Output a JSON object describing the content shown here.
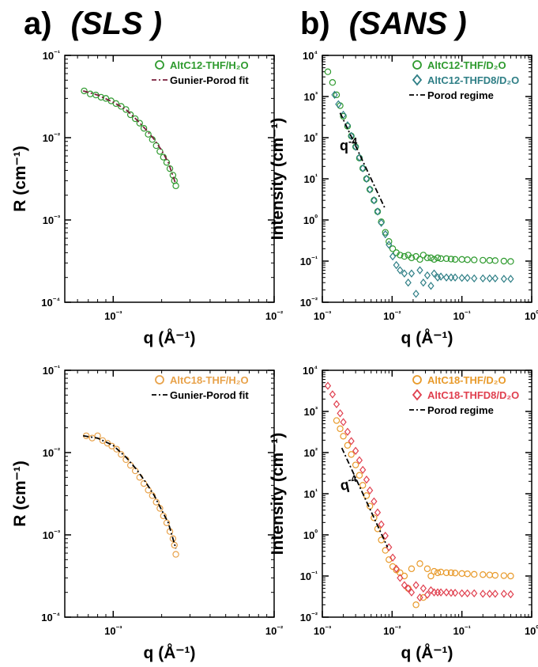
{
  "headers": [
    {
      "letter": "a)",
      "technique": "(SLS )"
    },
    {
      "letter": "b)",
      "technique": "(SANS )"
    }
  ],
  "chart_data": [
    {
      "type": "scatter",
      "panel": "a-top",
      "xlabel": "q (Å⁻¹)",
      "ylabel": "R  (cm⁻¹)",
      "xscale": "log",
      "yscale": "log",
      "xlim": [
        0.0005,
        0.01
      ],
      "ylim": [
        0.0001,
        0.1
      ],
      "xticks": [
        {
          "v": 0.001,
          "label": "10⁻³"
        },
        {
          "v": 0.01,
          "label": "10⁻²"
        }
      ],
      "yticks": [
        {
          "v": 0.0001,
          "label": "10⁻⁴"
        },
        {
          "v": 0.001,
          "label": "10⁻³"
        },
        {
          "v": 0.01,
          "label": "10⁻²"
        },
        {
          "v": 0.1,
          "label": "10⁻¹"
        }
      ],
      "legend_position": "top-right",
      "series": [
        {
          "name": "AltC12-THF/H₂O",
          "marker": "circle",
          "color": "#2e9a2e",
          "x": [
            0.00066,
            0.00072,
            0.00078,
            0.00084,
            0.0009,
            0.00097,
            0.00104,
            0.00112,
            0.0012,
            0.00128,
            0.00137,
            0.00146,
            0.00155,
            0.00165,
            0.00175,
            0.00185,
            0.00195,
            0.00205,
            0.00215,
            0.00225,
            0.00235,
            0.0024,
            0.00245
          ],
          "y": [
            0.037,
            0.034,
            0.033,
            0.031,
            0.03,
            0.028,
            0.026,
            0.024,
            0.022,
            0.019,
            0.017,
            0.015,
            0.013,
            0.011,
            0.0095,
            0.008,
            0.0068,
            0.0058,
            0.005,
            0.0042,
            0.0035,
            0.003,
            0.0026
          ]
        },
        {
          "name": "Gunier-Porod fit",
          "style": "dash-dot",
          "color": "#7a1f3d",
          "x": [
            0.00065,
            0.0008,
            0.001,
            0.0012,
            0.0014,
            0.0016,
            0.0018,
            0.002,
            0.0022,
            0.00245
          ],
          "y": [
            0.037,
            0.033,
            0.027,
            0.022,
            0.0165,
            0.0125,
            0.0095,
            0.007,
            0.005,
            0.0027
          ]
        }
      ]
    },
    {
      "type": "scatter",
      "panel": "b-top",
      "xlabel": "q (Å⁻¹)",
      "ylabel": "Intensity  (cm⁻¹)",
      "xscale": "log",
      "yscale": "log",
      "xlim": [
        0.001,
        1
      ],
      "ylim": [
        0.01,
        10000
      ],
      "xticks": [
        {
          "v": 0.001,
          "label": "10⁻³"
        },
        {
          "v": 0.01,
          "label": "10⁻²"
        },
        {
          "v": 0.1,
          "label": "10⁻¹"
        },
        {
          "v": 1,
          "label": "10⁰"
        }
      ],
      "yticks": [
        {
          "v": 0.01,
          "label": "10⁻²"
        },
        {
          "v": 0.1,
          "label": "10⁻¹"
        },
        {
          "v": 1,
          "label": "10⁰"
        },
        {
          "v": 10,
          "label": "10¹"
        },
        {
          "v": 100,
          "label": "10²"
        },
        {
          "v": 1000,
          "label": "10³"
        },
        {
          "v": 10000,
          "label": "10⁴"
        }
      ],
      "legend_position": "top-right",
      "annotation": {
        "text": "q",
        "exponent": "-4"
      },
      "series": [
        {
          "name": "AltC12-THF/D₂O",
          "marker": "circle",
          "color": "#2e9a2e",
          "x": [
            0.0012,
            0.0014,
            0.0016,
            0.0018,
            0.002,
            0.0023,
            0.0026,
            0.003,
            0.0034,
            0.0038,
            0.0043,
            0.0048,
            0.0055,
            0.0062,
            0.007,
            0.008,
            0.009,
            0.0102,
            0.0115,
            0.013,
            0.015,
            0.017,
            0.019,
            0.022,
            0.025,
            0.028,
            0.032,
            0.036,
            0.04,
            0.045,
            0.05,
            0.06,
            0.07,
            0.08,
            0.1,
            0.12,
            0.15,
            0.2,
            0.25,
            0.3,
            0.4,
            0.5
          ],
          "y": [
            4000,
            2200,
            1100,
            600,
            330,
            190,
            110,
            60,
            32,
            18,
            10,
            5.5,
            3,
            1.6,
            0.9,
            0.5,
            0.3,
            0.2,
            0.16,
            0.14,
            0.13,
            0.14,
            0.12,
            0.13,
            0.11,
            0.14,
            0.12,
            0.12,
            0.11,
            0.12,
            0.115,
            0.115,
            0.112,
            0.11,
            0.11,
            0.108,
            0.107,
            0.105,
            0.104,
            0.103,
            0.1,
            0.098
          ]
        },
        {
          "name": "AltC12-THFD8/D₂O",
          "marker": "diamond",
          "color": "#2f7f86",
          "x": [
            0.0015,
            0.0017,
            0.002,
            0.0023,
            0.0026,
            0.003,
            0.0034,
            0.0038,
            0.0043,
            0.0048,
            0.0055,
            0.0062,
            0.007,
            0.008,
            0.009,
            0.0102,
            0.0115,
            0.013,
            0.015,
            0.017,
            0.019,
            0.022,
            0.025,
            0.028,
            0.032,
            0.036,
            0.04,
            0.045,
            0.05,
            0.06,
            0.07,
            0.08,
            0.1,
            0.12,
            0.15,
            0.2,
            0.25,
            0.3,
            0.4,
            0.5
          ],
          "y": [
            1100,
            650,
            360,
            200,
            110,
            60,
            33,
            18,
            10,
            5.5,
            3,
            1.6,
            0.85,
            0.45,
            0.25,
            0.13,
            0.08,
            0.06,
            0.05,
            0.03,
            0.05,
            0.016,
            0.06,
            0.03,
            0.045,
            0.025,
            0.05,
            0.04,
            0.042,
            0.04,
            0.04,
            0.04,
            0.039,
            0.039,
            0.038,
            0.038,
            0.038,
            0.038,
            0.037,
            0.037
          ]
        },
        {
          "name": "Porod regime",
          "style": "dash-dot",
          "color": "#000000",
          "x": [
            0.0018,
            0.0078
          ],
          "y": [
            400,
            2
          ]
        }
      ]
    },
    {
      "type": "scatter",
      "panel": "a-bottom",
      "xlabel": "q (Å⁻¹)",
      "ylabel": "R  (cm⁻¹)",
      "xscale": "log",
      "yscale": "log",
      "xlim": [
        0.0005,
        0.01
      ],
      "ylim": [
        0.0001,
        0.1
      ],
      "xticks": [
        {
          "v": 0.001,
          "label": "10⁻³"
        },
        {
          "v": 0.01,
          "label": "10⁻²"
        }
      ],
      "yticks": [
        {
          "v": 0.0001,
          "label": "10⁻⁴"
        },
        {
          "v": 0.001,
          "label": "10⁻³"
        },
        {
          "v": 0.01,
          "label": "10⁻²"
        },
        {
          "v": 0.1,
          "label": "10⁻¹"
        }
      ],
      "legend_position": "top-right",
      "series": [
        {
          "name": "AltC18-THF/H₂O",
          "marker": "circle",
          "color": "#e8a24a",
          "x": [
            0.00068,
            0.00074,
            0.0008,
            0.00086,
            0.00092,
            0.00098,
            0.00105,
            0.00112,
            0.0012,
            0.00128,
            0.00137,
            0.00146,
            0.00155,
            0.00165,
            0.00175,
            0.00185,
            0.00195,
            0.00205,
            0.00215,
            0.00225,
            0.00235,
            0.0024,
            0.00245
          ],
          "y": [
            0.016,
            0.015,
            0.016,
            0.014,
            0.013,
            0.012,
            0.011,
            0.0095,
            0.0082,
            0.007,
            0.006,
            0.005,
            0.0042,
            0.0035,
            0.003,
            0.0025,
            0.0021,
            0.0017,
            0.0014,
            0.0011,
            0.0009,
            0.00075,
            0.00058
          ]
        },
        {
          "name": "Gunier-Porod fit",
          "style": "dash-dot",
          "color": "#000000",
          "x": [
            0.00065,
            0.0008,
            0.001,
            0.0012,
            0.0014,
            0.0016,
            0.0018,
            0.002,
            0.0022,
            0.00245
          ],
          "y": [
            0.016,
            0.015,
            0.0122,
            0.0088,
            0.0062,
            0.0043,
            0.003,
            0.002,
            0.0014,
            0.00068
          ]
        }
      ]
    },
    {
      "type": "scatter",
      "panel": "b-bottom",
      "xlabel": "q (Å⁻¹)",
      "ylabel": "Intensity  (cm⁻¹)",
      "xscale": "log",
      "yscale": "log",
      "xlim": [
        0.001,
        1
      ],
      "ylim": [
        0.01,
        10000
      ],
      "xticks": [
        {
          "v": 0.001,
          "label": "10⁻³"
        },
        {
          "v": 0.01,
          "label": "10⁻²"
        },
        {
          "v": 0.1,
          "label": "10⁻¹"
        },
        {
          "v": 1,
          "label": "10⁰"
        }
      ],
      "yticks": [
        {
          "v": 0.01,
          "label": "10⁻²"
        },
        {
          "v": 0.1,
          "label": "10⁻¹"
        },
        {
          "v": 1,
          "label": "10⁰"
        },
        {
          "v": 10,
          "label": "10¹"
        },
        {
          "v": 100,
          "label": "10²"
        },
        {
          "v": 1000,
          "label": "10³"
        },
        {
          "v": 10000,
          "label": "10⁴"
        }
      ],
      "legend_position": "top-right",
      "annotation": {
        "text": "q",
        "exponent": "-4"
      },
      "series": [
        {
          "name": "AltC18-THF/D₂O",
          "marker": "circle",
          "color": "#e89a2a",
          "x": [
            0.0016,
            0.0018,
            0.002,
            0.0023,
            0.0026,
            0.003,
            0.0034,
            0.0038,
            0.0043,
            0.0048,
            0.0055,
            0.0062,
            0.007,
            0.008,
            0.009,
            0.0102,
            0.0115,
            0.013,
            0.015,
            0.017,
            0.019,
            0.022,
            0.025,
            0.028,
            0.032,
            0.036,
            0.04,
            0.045,
            0.05,
            0.06,
            0.07,
            0.08,
            0.1,
            0.12,
            0.15,
            0.2,
            0.25,
            0.3,
            0.4,
            0.5
          ],
          "y": [
            600,
            380,
            250,
            150,
            90,
            50,
            28,
            16,
            9,
            5,
            2.6,
            1.4,
            0.75,
            0.42,
            0.25,
            0.17,
            0.14,
            0.12,
            0.1,
            0.05,
            0.15,
            0.02,
            0.2,
            0.03,
            0.15,
            0.1,
            0.13,
            0.12,
            0.125,
            0.12,
            0.12,
            0.118,
            0.115,
            0.113,
            0.11,
            0.108,
            0.106,
            0.104,
            0.102,
            0.1
          ]
        },
        {
          "name": "AltC18-THFD8/D₂O",
          "marker": "diamond",
          "color": "#e0404f",
          "x": [
            0.0012,
            0.0014,
            0.0016,
            0.0018,
            0.002,
            0.0023,
            0.0026,
            0.003,
            0.0034,
            0.0038,
            0.0043,
            0.0048,
            0.0055,
            0.0062,
            0.007,
            0.008,
            0.009,
            0.0102,
            0.0115,
            0.013,
            0.015,
            0.017,
            0.019,
            0.022,
            0.025,
            0.028,
            0.032,
            0.036,
            0.04,
            0.045,
            0.05,
            0.06,
            0.07,
            0.08,
            0.1,
            0.12,
            0.15,
            0.2,
            0.25,
            0.3,
            0.4,
            0.5
          ],
          "y": [
            4200,
            2600,
            1500,
            900,
            550,
            320,
            190,
            110,
            65,
            38,
            22,
            12,
            6.5,
            3.5,
            1.8,
            0.95,
            0.5,
            0.28,
            0.15,
            0.09,
            0.06,
            0.05,
            0.04,
            0.06,
            0.03,
            0.05,
            0.035,
            0.045,
            0.04,
            0.04,
            0.04,
            0.04,
            0.039,
            0.039,
            0.038,
            0.038,
            0.038,
            0.037,
            0.037,
            0.037,
            0.037,
            0.036
          ]
        },
        {
          "name": "Porod regime",
          "style": "dash-dot",
          "color": "#000000",
          "x": [
            0.0019,
            0.0086
          ],
          "y": [
            130,
            0.5
          ]
        }
      ]
    }
  ]
}
